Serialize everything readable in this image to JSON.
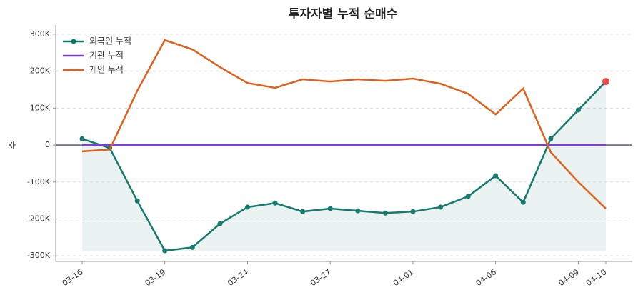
{
  "chart_data": {
    "type": "line",
    "title": "투자자별 누적 순매수",
    "y_label": "주",
    "categories": [
      "03-16",
      null,
      null,
      "03-19",
      null,
      null,
      "03-24",
      null,
      null,
      "03-27",
      null,
      null,
      "04-01",
      null,
      null,
      "04-06",
      null,
      null,
      "04-09",
      "04-10"
    ],
    "series": [
      {
        "name": "외국인 누적",
        "color": "#147a6e",
        "markers": true,
        "fill": true,
        "values": [
          17000,
          -8000,
          -151000,
          -286000,
          -277000,
          -213000,
          -168000,
          -157000,
          -180000,
          -172000,
          -178000,
          -184000,
          -180000,
          -168000,
          -139000,
          -83000,
          -155000,
          17000,
          95000,
          172000
        ]
      },
      {
        "name": "기관 누적",
        "color": "#7b3fd6",
        "markers": false,
        "fill": false,
        "values": [
          0,
          0,
          0,
          0,
          0,
          0,
          0,
          0,
          0,
          0,
          0,
          0,
          0,
          0,
          0,
          0,
          0,
          0,
          0,
          0
        ]
      },
      {
        "name": "개인 누적",
        "color": "#e0601a",
        "markers": false,
        "fill": false,
        "values": [
          -17000,
          -12000,
          147000,
          284000,
          259000,
          211000,
          168000,
          155000,
          178000,
          172000,
          178000,
          174000,
          180000,
          166000,
          139000,
          83000,
          153000,
          -19000,
          -100000,
          -172000
        ]
      }
    ],
    "last_point_color": "#e84545",
    "ylim": [
      -315000,
      325000
    ],
    "yticks": [
      {
        "value": -300000,
        "label": "-300K"
      },
      {
        "value": -200000,
        "label": "-200K"
      },
      {
        "value": -100000,
        "label": "-100K"
      },
      0,
      {
        "value": 100000,
        "label": "100K"
      },
      {
        "value": 200000,
        "label": "200K"
      },
      {
        "value": 300000,
        "label": "300K"
      }
    ],
    "grid": true,
    "legend": "upper-left"
  }
}
